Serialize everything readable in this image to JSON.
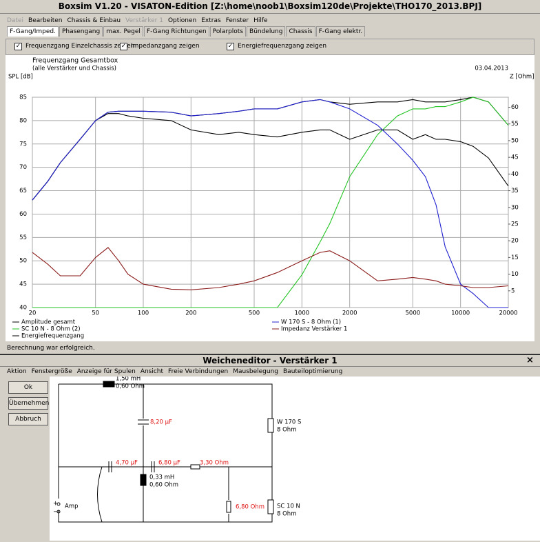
{
  "window": {
    "title": "Boxsim V1.20 - VISATON-Edition [Z:\\home\\noob1\\Boxsim120de\\Projekte\\THO170_2013.BPJ]",
    "menu": [
      "Datei",
      "Bearbeiten",
      "Chassis & Einbau",
      "Verstärker 1",
      "Optionen",
      "Extras",
      "Fenster",
      "Hilfe"
    ],
    "tabs": [
      "F-Gang/Imped.",
      "Phasengang",
      "max. Pegel",
      "F-Gang Richtungen",
      "Polarplots",
      "Bündelung",
      "Chassis",
      "F-Gang elektr."
    ],
    "checkboxes": [
      "Frequenzgang Einzelchassis zeigen",
      "Impedanzgang zeigen",
      "Energiefrequenzgang zeigen"
    ],
    "status": "Berechnung war erfolgreich."
  },
  "chart_data": {
    "type": "line",
    "title": "Frequenzgang Gesamtbox",
    "subtitle": "(alle Verstärker und Chassis)",
    "date": "03.04.2013",
    "y_label": "SPL [dB]",
    "y2_label": "Z [Ohm]",
    "xscale": "log",
    "grid": true,
    "x": [
      20,
      25,
      30,
      40,
      50,
      60,
      70,
      80,
      100,
      150,
      200,
      300,
      400,
      500,
      700,
      1000,
      1300,
      1500,
      2000,
      3000,
      4000,
      5000,
      6000,
      7000,
      8000,
      10000,
      12000,
      15000,
      20000
    ],
    "xlim": [
      20,
      20000
    ],
    "xticks": [
      20,
      50,
      100,
      200,
      500,
      1000,
      2000,
      5000,
      10000,
      20000
    ],
    "ylim": [
      40,
      85
    ],
    "yticks": [
      40,
      45,
      50,
      55,
      60,
      65,
      70,
      75,
      80,
      85
    ],
    "y2lim": [
      0,
      63
    ],
    "y2ticks": [
      5,
      10,
      15,
      20,
      25,
      30,
      35,
      40,
      45,
      50,
      55,
      60
    ],
    "series": [
      {
        "name": "Amplitude gesamt",
        "color": "#000000",
        "values": [
          63,
          67,
          71,
          76,
          80,
          81.8,
          82,
          82,
          82,
          81.8,
          81,
          81.5,
          82,
          82.5,
          82.5,
          84,
          84.5,
          84,
          83.5,
          84,
          84,
          84.5,
          84,
          84,
          84,
          84.5,
          85,
          84,
          79
        ]
      },
      {
        "name": "SC 10 N - 8 Ohm (2)",
        "color": "#22c422",
        "values": [
          40,
          40,
          40,
          40,
          40,
          40,
          40,
          40,
          40,
          40,
          40,
          40,
          40,
          40,
          40,
          47,
          54,
          58,
          68,
          77,
          81,
          82.5,
          82.5,
          83,
          83,
          84,
          85,
          84,
          79
        ]
      },
      {
        "name": "Energiefrequenzgang",
        "color": "#000000",
        "values": [
          63,
          67,
          71,
          76,
          80,
          81.5,
          81.5,
          81,
          80.5,
          80,
          78,
          77,
          77.5,
          77,
          76.5,
          77.5,
          78,
          78,
          76,
          78,
          78,
          76,
          77,
          76,
          76,
          75.5,
          74.5,
          72,
          66
        ]
      },
      {
        "name": "W 170 S - 8 Ohm (1)",
        "color": "#2020d0",
        "values": [
          63,
          67,
          71,
          76,
          80,
          81.8,
          82,
          82,
          82,
          81.8,
          81,
          81.5,
          82,
          82.5,
          82.5,
          84,
          84.5,
          84,
          82.5,
          79,
          75,
          71.5,
          68,
          62,
          53,
          45,
          43,
          40,
          40
        ]
      },
      {
        "name": "Impedanz Verstärker 1",
        "color": "#8b1a1a",
        "axis": "y2",
        "values": [
          16.5,
          13,
          9.5,
          9.5,
          15,
          18,
          14,
          10,
          7,
          5.5,
          5.3,
          6,
          7,
          8,
          10.5,
          14,
          16.5,
          17,
          14,
          8,
          8.5,
          9,
          8.5,
          8,
          7,
          6.5,
          6,
          6,
          6.5
        ]
      }
    ]
  },
  "editor": {
    "title": "Weicheneditor - Verstärker 1",
    "menu": [
      "Aktion",
      "Fenstergröße",
      "Anzeige für Spulen",
      "Ansicht",
      "Freie Verbindungen",
      "Mausbelegung",
      "Bauteiloptimierung"
    ],
    "buttons": [
      "Ok",
      "Übernehmen",
      "Abbruch"
    ],
    "circuit": {
      "l1": [
        "1,50 mH",
        "0,60 Ohm"
      ],
      "c1": "8,20 µF",
      "woofer": [
        "W 170 S",
        "8 Ohm"
      ],
      "c2": "4,70 µF",
      "c3": "6,80 µF",
      "r1": "3,30 Ohm",
      "l2": [
        "0,33 mH",
        "0,60 Ohm"
      ],
      "r2": "6,80 Ohm",
      "tweeter": [
        "SC 10 N",
        "8 Ohm"
      ],
      "amp": "Amp",
      "plus": "+",
      "minus": "−"
    }
  }
}
